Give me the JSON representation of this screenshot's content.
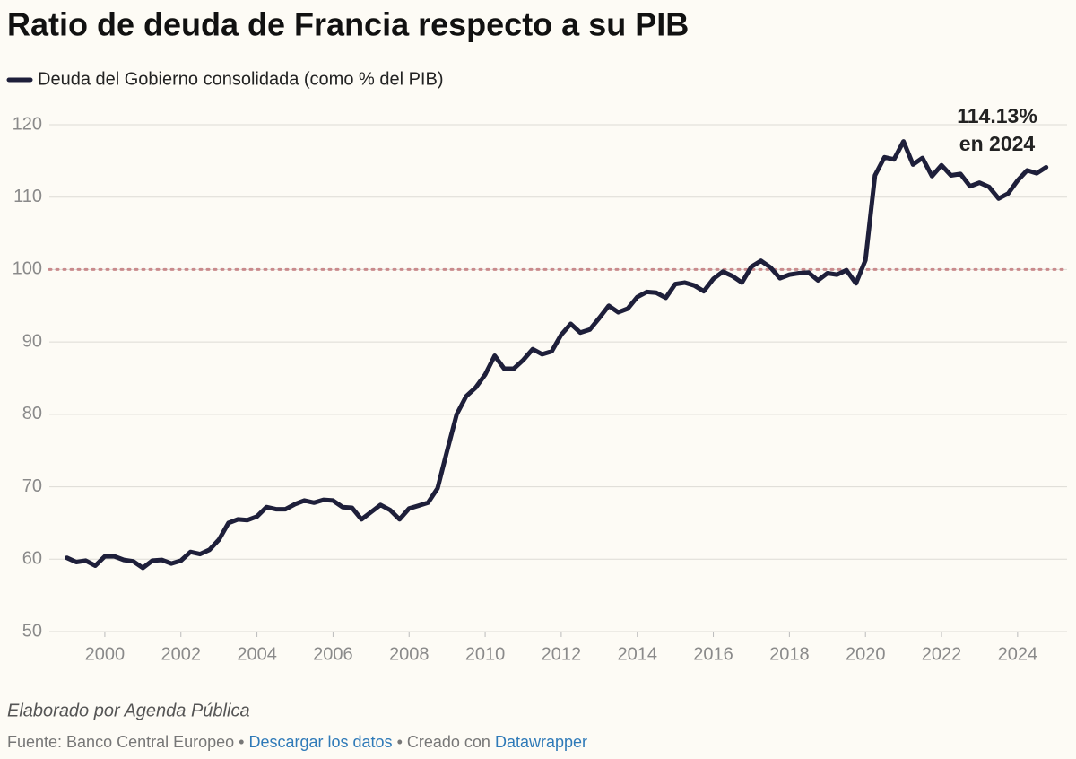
{
  "chart_data": {
    "type": "line",
    "title": "Ratio de deuda de Francia respecto a su PIB",
    "annotation": [
      "114.13%",
      "en 2024"
    ],
    "footer": {
      "credit": "Elaborado por Agenda Pública",
      "source": "Fuente: Banco Central Europeo •",
      "download": "Descargar los datos",
      "made": "• Creado con",
      "tool": "Datawrapper"
    },
    "x": [
      1999,
      1999.25,
      1999.5,
      1999.75,
      2000,
      2000.25,
      2000.5,
      2000.75,
      2001,
      2001.25,
      2001.5,
      2001.75,
      2002,
      2002.25,
      2002.5,
      2002.75,
      2003,
      2003.25,
      2003.5,
      2003.75,
      2004,
      2004.25,
      2004.5,
      2004.75,
      2005,
      2005.25,
      2005.5,
      2005.75,
      2006,
      2006.25,
      2006.5,
      2006.75,
      2007,
      2007.25,
      2007.5,
      2007.75,
      2008,
      2008.25,
      2008.5,
      2008.75,
      2009,
      2009.25,
      2009.5,
      2009.75,
      2010,
      2010.25,
      2010.5,
      2010.75,
      2011,
      2011.25,
      2011.5,
      2011.75,
      2012,
      2012.25,
      2012.5,
      2012.75,
      2013,
      2013.25,
      2013.5,
      2013.75,
      2014,
      2014.25,
      2014.5,
      2014.75,
      2015,
      2015.25,
      2015.5,
      2015.75,
      2016,
      2016.25,
      2016.5,
      2016.75,
      2017,
      2017.25,
      2017.5,
      2017.75,
      2018,
      2018.25,
      2018.5,
      2018.75,
      2019,
      2019.25,
      2019.5,
      2019.75,
      2020,
      2020.25,
      2020.5,
      2020.75,
      2021,
      2021.25,
      2021.5,
      2021.75,
      2022,
      2022.25,
      2022.5,
      2022.75,
      2023,
      2023.25,
      2023.5,
      2023.75,
      2024,
      2024.25,
      2024.5,
      2024.75
    ],
    "series": [
      {
        "name": "Deuda del Gobierno consolidada (como % del PIB)",
        "color": "#1e1f3a",
        "values": [
          60.2,
          59.6,
          59.8,
          59.1,
          60.4,
          60.4,
          59.9,
          59.7,
          58.8,
          59.8,
          59.9,
          59.4,
          59.8,
          61.0,
          60.7,
          61.3,
          62.7,
          65.0,
          65.5,
          65.4,
          65.9,
          67.2,
          66.9,
          66.9,
          67.6,
          68.1,
          67.8,
          68.2,
          68.1,
          67.2,
          67.1,
          65.5,
          66.5,
          67.5,
          66.8,
          65.5,
          67.0,
          67.4,
          67.8,
          69.8,
          75.0,
          80.0,
          82.5,
          83.7,
          85.5,
          88.1,
          86.3,
          86.3,
          87.5,
          89.0,
          88.3,
          88.7,
          91.0,
          92.5,
          91.3,
          91.7,
          93.3,
          95.0,
          94.1,
          94.6,
          96.2,
          96.9,
          96.8,
          96.1,
          98.0,
          98.2,
          97.8,
          97.0,
          98.7,
          99.7,
          99.1,
          98.2,
          100.4,
          101.2,
          100.3,
          98.8,
          99.3,
          99.5,
          99.6,
          98.5,
          99.5,
          99.3,
          99.9,
          98.1,
          101.3,
          113.0,
          115.5,
          115.2,
          117.7,
          114.5,
          115.4,
          112.9,
          114.4,
          113.0,
          113.2,
          111.5,
          112.0,
          111.4,
          109.8,
          110.5,
          112.3,
          113.7,
          113.3,
          114.13
        ]
      }
    ],
    "reference_line": {
      "value": 100,
      "color": "#c98a8c"
    },
    "xlim": [
      1998.54,
      2025.3
    ],
    "xticks": [
      2000,
      2002,
      2004,
      2006,
      2008,
      2010,
      2012,
      2014,
      2016,
      2018,
      2020,
      2022,
      2024
    ],
    "ylim": [
      50,
      120
    ],
    "yticks": [
      50,
      60,
      70,
      80,
      90,
      100,
      110,
      120
    ],
    "grid": true
  }
}
